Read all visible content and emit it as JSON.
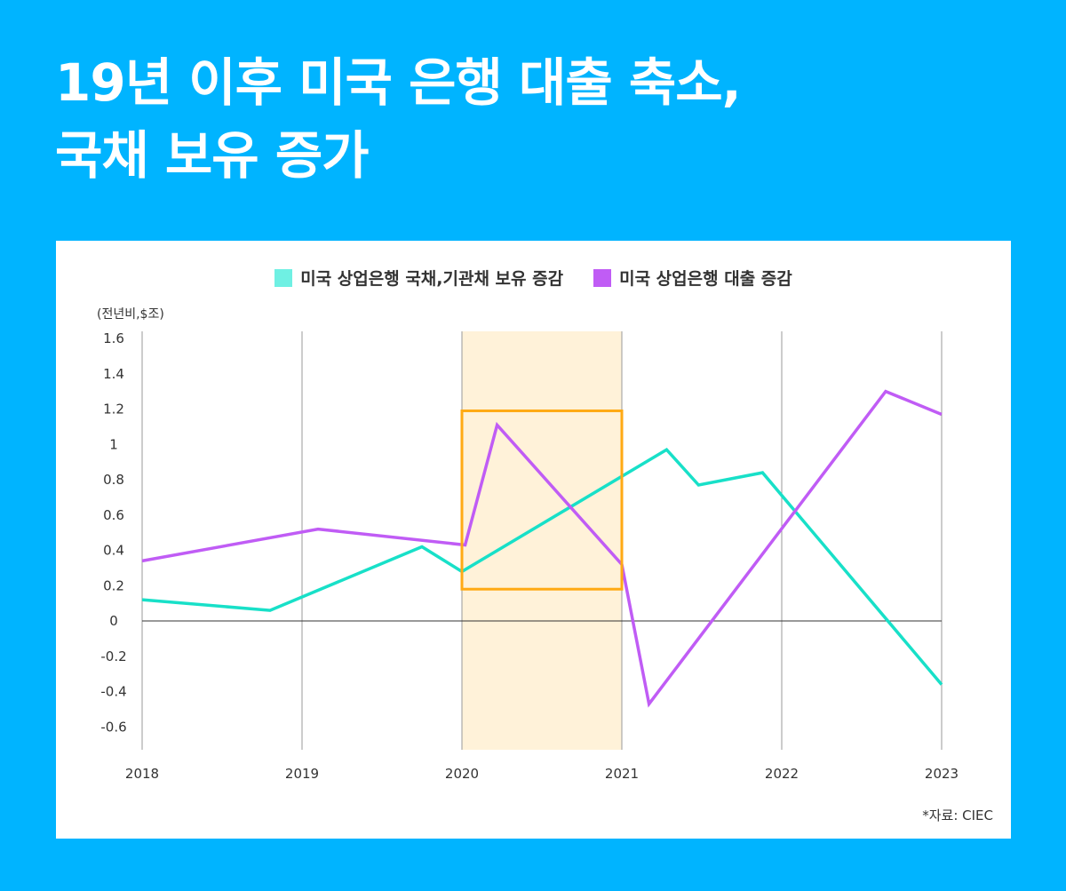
{
  "header": {
    "title_line1": "19년 이후 미국 은행 대출 축소,",
    "title_line2": "국채 보유 증가"
  },
  "unit_label": "(전년비,$조)",
  "source": "*자료: CIEC",
  "colors": {
    "background": "#00b4ff",
    "series_securities": "#18e0c8",
    "series_loans": "#c05cf5",
    "highlight_fill": "#fff2d9",
    "highlight_box": "#ffaa14"
  },
  "chart_data": {
    "type": "line",
    "title": "19년 이후 미국 은행 대출 축소, 국채 보유 증가",
    "ylabel": "(전년비,$조)",
    "ylim": [
      -0.7,
      1.6
    ],
    "yticks": [
      1.6,
      1.4,
      1.2,
      1,
      0.8,
      0.6,
      0.4,
      0.2,
      0,
      -0.2,
      -0.4,
      -0.6
    ],
    "ytick_labels": [
      "1.6",
      "1.4",
      "1.2",
      "1",
      "0.8",
      "0.6",
      "0.4",
      "0.2",
      "0",
      "-0.2",
      "-0.4",
      "-0.6"
    ],
    "xlim": [
      2018,
      2023
    ],
    "xticks": [
      2018,
      2019,
      2020,
      2021,
      2022,
      2023
    ],
    "xtick_labels": [
      "2018",
      "2019",
      "2020",
      "2021",
      "2022",
      "2023"
    ],
    "grid": "vertical",
    "legend": "top-center",
    "shaded_region": {
      "x": [
        2020,
        2021
      ]
    },
    "highlight_box": {
      "x": [
        2020,
        2021
      ],
      "y": [
        0.18,
        1.19
      ]
    },
    "series": [
      {
        "name": "미국 상업은행 국채,기관채 보유 증감",
        "color_key": "series_securities",
        "x": [
          2018,
          2018.8,
          2019.75,
          2020,
          2021.28,
          2021.48,
          2021.88,
          2023
        ],
        "y": [
          0.12,
          0.06,
          0.42,
          0.28,
          0.97,
          0.77,
          0.84,
          -0.36
        ]
      },
      {
        "name": "미국 상업은행 대출 증감",
        "color_key": "series_loans",
        "x": [
          2018,
          2019.1,
          2020.02,
          2020.22,
          2021,
          2021.17,
          2022.65,
          2023
        ],
        "y": [
          0.34,
          0.52,
          0.43,
          1.11,
          0.32,
          -0.47,
          1.3,
          1.17
        ]
      }
    ]
  }
}
